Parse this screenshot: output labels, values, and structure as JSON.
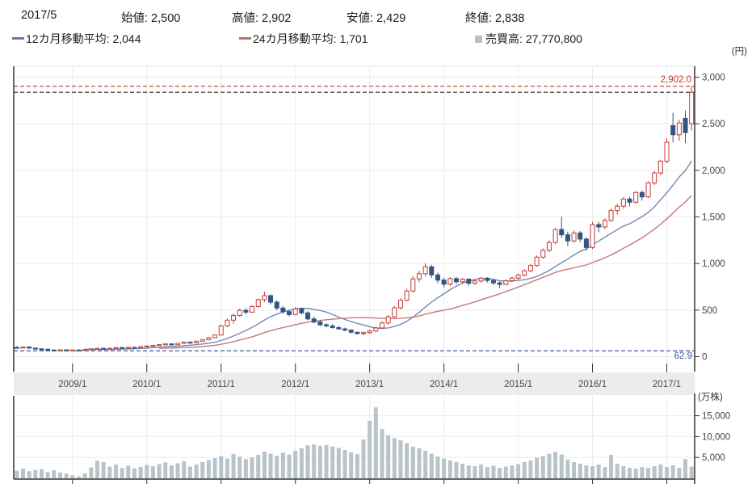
{
  "header": {
    "date": "2017/5",
    "ohlc_fields": [
      {
        "label": "始値:",
        "value": "2,500"
      },
      {
        "label": "高値:",
        "value": "2,902"
      },
      {
        "label": "安値:",
        "value": "2,429"
      },
      {
        "label": "終値:",
        "value": "2,838"
      }
    ],
    "legend": [
      {
        "label": "12カ月移動平均:",
        "value": "2,044",
        "color": "#5f7cab"
      },
      {
        "label": "24カ月移動平均:",
        "value": "1,701",
        "color": "#bf6f6b"
      },
      {
        "label": "売買高:",
        "value": "27,770,800",
        "color": "#b6c2ca"
      }
    ]
  },
  "chart_data": {
    "type": "candlestick+volume",
    "title": "Monthly stock candlestick chart 2008/4 - 2017/5",
    "price_axis": {
      "unit": "(円)",
      "ticks": [
        0,
        500,
        1000,
        1500,
        2000,
        2500,
        3000
      ],
      "range": [
        0,
        3100
      ]
    },
    "volume_axis": {
      "unit": "(万株)",
      "ticks": [
        5000,
        10000,
        15000
      ],
      "range": [
        0,
        18000
      ]
    },
    "x_tick_labels": [
      "2009/1",
      "2010/1",
      "2011/1",
      "2012/1",
      "2013/1",
      "2014/1",
      "2015/1",
      "2016/1",
      "2017/1"
    ],
    "start_month": {
      "year": 2008,
      "month": 4
    },
    "annotations": {
      "high_line": {
        "value": 2902.0,
        "label": "2,902.0",
        "color": "#c0392b"
      },
      "close_line": {
        "value": 2838,
        "color": "#2b2b2b"
      },
      "low_line": {
        "value": 62.9,
        "label": "62.9",
        "color": "#3d5f9b"
      }
    },
    "ma": [
      {
        "name": "12カ月移動平均",
        "window": 12,
        "current": 2044,
        "color": "#7189b8"
      },
      {
        "name": "24カ月移動平均",
        "window": 24,
        "current": 1701,
        "color": "#c47a76"
      }
    ],
    "ohlc": [
      [
        100,
        112,
        92,
        96
      ],
      [
        96,
        108,
        90,
        104
      ],
      [
        104,
        110,
        88,
        92
      ],
      [
        92,
        98,
        78,
        84
      ],
      [
        84,
        92,
        74,
        80
      ],
      [
        80,
        86,
        66,
        72
      ],
      [
        72,
        76,
        62.9,
        67
      ],
      [
        67,
        78,
        64,
        73
      ],
      [
        73,
        76,
        64,
        68
      ],
      [
        68,
        75,
        65,
        72
      ],
      [
        72,
        74,
        64,
        68
      ],
      [
        68,
        80,
        66,
        77
      ],
      [
        77,
        88,
        74,
        84
      ],
      [
        84,
        95,
        80,
        90
      ],
      [
        90,
        96,
        82,
        86
      ],
      [
        86,
        94,
        83,
        91
      ],
      [
        91,
        102,
        88,
        98
      ],
      [
        98,
        103,
        90,
        94
      ],
      [
        94,
        104,
        91,
        100
      ],
      [
        100,
        105,
        93,
        97
      ],
      [
        97,
        112,
        95,
        108
      ],
      [
        108,
        120,
        104,
        115
      ],
      [
        115,
        126,
        110,
        121
      ],
      [
        121,
        134,
        117,
        129
      ],
      [
        129,
        142,
        124,
        137
      ],
      [
        137,
        144,
        122,
        128
      ],
      [
        128,
        148,
        125,
        143
      ],
      [
        143,
        162,
        139,
        156
      ],
      [
        156,
        164,
        144,
        150
      ],
      [
        150,
        172,
        147,
        166
      ],
      [
        166,
        188,
        162,
        181
      ],
      [
        181,
        212,
        178,
        203
      ],
      [
        203,
        240,
        198,
        232
      ],
      [
        232,
        345,
        228,
        330
      ],
      [
        330,
        408,
        318,
        392
      ],
      [
        392,
        465,
        350,
        442
      ],
      [
        442,
        515,
        430,
        498
      ],
      [
        498,
        520,
        455,
        478
      ],
      [
        478,
        552,
        470,
        538
      ],
      [
        538,
        625,
        528,
        612
      ],
      [
        612,
        700,
        585,
        655
      ],
      [
        655,
        668,
        560,
        585
      ],
      [
        585,
        605,
        498,
        522
      ],
      [
        522,
        545,
        462,
        484
      ],
      [
        484,
        500,
        432,
        452
      ],
      [
        452,
        530,
        445,
        512
      ],
      [
        512,
        525,
        452,
        470
      ],
      [
        470,
        488,
        392,
        405
      ],
      [
        405,
        430,
        358,
        372
      ],
      [
        372,
        395,
        330,
        342
      ],
      [
        342,
        360,
        316,
        330
      ],
      [
        330,
        348,
        300,
        312
      ],
      [
        312,
        330,
        288,
        298
      ],
      [
        298,
        312,
        272,
        285
      ],
      [
        285,
        295,
        252,
        262
      ],
      [
        262,
        270,
        238,
        248
      ],
      [
        248,
        268,
        232,
        258
      ],
      [
        258,
        288,
        246,
        276
      ],
      [
        276,
        325,
        262,
        308
      ],
      [
        308,
        380,
        298,
        362
      ],
      [
        362,
        448,
        344,
        428
      ],
      [
        428,
        545,
        420,
        524
      ],
      [
        524,
        628,
        508,
        606
      ],
      [
        606,
        728,
        595,
        705
      ],
      [
        705,
        865,
        692,
        835
      ],
      [
        835,
        920,
        800,
        890
      ],
      [
        890,
        1005,
        858,
        965
      ],
      [
        965,
        985,
        845,
        878
      ],
      [
        878,
        900,
        788,
        822
      ],
      [
        822,
        848,
        742,
        778
      ],
      [
        778,
        855,
        760,
        838
      ],
      [
        838,
        858,
        775,
        804
      ],
      [
        804,
        846,
        782,
        832
      ],
      [
        832,
        842,
        762,
        788
      ],
      [
        788,
        828,
        772,
        812
      ],
      [
        812,
        855,
        798,
        842
      ],
      [
        842,
        856,
        795,
        818
      ],
      [
        818,
        835,
        768,
        792
      ],
      [
        792,
        808,
        735,
        776
      ],
      [
        776,
        832,
        766,
        815
      ],
      [
        815,
        858,
        802,
        844
      ],
      [
        844,
        892,
        828,
        875
      ],
      [
        875,
        938,
        862,
        922
      ],
      [
        922,
        995,
        908,
        978
      ],
      [
        978,
        1085,
        965,
        1068
      ],
      [
        1068,
        1162,
        1050,
        1142
      ],
      [
        1142,
        1248,
        1122,
        1225
      ],
      [
        1225,
        1382,
        1208,
        1365
      ],
      [
        1365,
        1502,
        1275,
        1308
      ],
      [
        1308,
        1342,
        1185,
        1242
      ],
      [
        1242,
        1355,
        1225,
        1328
      ],
      [
        1328,
        1348,
        1228,
        1262
      ],
      [
        1262,
        1282,
        1138,
        1172
      ],
      [
        1172,
        1445,
        1155,
        1418
      ],
      [
        1418,
        1448,
        1335,
        1392
      ],
      [
        1392,
        1485,
        1368,
        1462
      ],
      [
        1462,
        1588,
        1448,
        1568
      ],
      [
        1568,
        1642,
        1525,
        1615
      ],
      [
        1615,
        1712,
        1588,
        1692
      ],
      [
        1692,
        1715,
        1612,
        1658
      ],
      [
        1658,
        1778,
        1642,
        1762
      ],
      [
        1762,
        1785,
        1675,
        1715
      ],
      [
        1715,
        1882,
        1702,
        1865
      ],
      [
        1865,
        1992,
        1842,
        1972
      ],
      [
        1972,
        2115,
        1948,
        2098
      ],
      [
        2098,
        2345,
        2075,
        2302
      ],
      [
        2480,
        2618,
        2302,
        2382
      ],
      [
        2382,
        2542,
        2318,
        2508
      ],
      [
        2558,
        2642,
        2292,
        2405
      ],
      [
        2500,
        2902,
        2429,
        2838
      ]
    ],
    "volume": [
      1800,
      2300,
      1700,
      2000,
      2200,
      1500,
      1900,
      1400,
      1100,
      700,
      500,
      1200,
      2600,
      4200,
      3900,
      2800,
      3300,
      2500,
      3000,
      2400,
      2700,
      3200,
      2900,
      3400,
      3800,
      3100,
      3600,
      4100,
      2800,
      3300,
      3900,
      4400,
      4800,
      5300,
      4700,
      5800,
      5200,
      4600,
      5000,
      5600,
      6400,
      5900,
      5400,
      6100,
      5700,
      6600,
      7200,
      7900,
      8100,
      7800,
      8000,
      7600,
      7300,
      6800,
      6200,
      5800,
      9300,
      13800,
      17000,
      11800,
      10300,
      9600,
      9100,
      8400,
      7600,
      7200,
      6600,
      5900,
      5200,
      4700,
      4300,
      3900,
      3500,
      3100,
      2900,
      3300,
      2700,
      3000,
      2500,
      2800,
      3100,
      3400,
      3900,
      4300,
      4900,
      5300,
      5900,
      6300,
      5700,
      4500,
      3900,
      3500,
      3100,
      2900,
      3300,
      2700,
      5600,
      3500,
      2900,
      2500,
      2300,
      2700,
      2500,
      2900,
      3300,
      2700,
      3100,
      2500,
      4600,
      2777
    ],
    "colors": {
      "up_candle": "#c23b33",
      "down_candle": "#35547f",
      "volume_bar": "#b9c3ca",
      "grid": "#ececec",
      "axis": "#333333",
      "band_bg": "#ececec",
      "tick_text": "#3d4450",
      "band_text": "#4a4a4a"
    }
  }
}
